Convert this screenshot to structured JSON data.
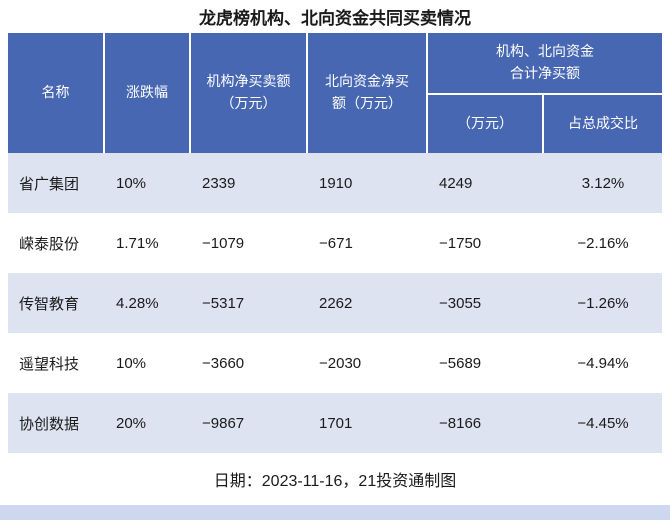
{
  "title": "龙虎榜机构、北向资金共同买卖情况",
  "table": {
    "header": {
      "name": "名称",
      "change": "涨跌幅",
      "inst": "机构净买卖额\n（万元）",
      "north": "北向资金净买\n额（万元）",
      "combined_group": "机构、北向资金\n合计净买额",
      "combined_amount": "（万元）",
      "combined_ratio": "占总成交比"
    },
    "rows": [
      {
        "name": "省广集团",
        "change": "10%",
        "inst": "2339",
        "north": "1910",
        "total": "4249",
        "ratio": "3.12%"
      },
      {
        "name": "嵘泰股份",
        "change": "1.71%",
        "inst": "−1079",
        "north": "−671",
        "total": "−1750",
        "ratio": "−2.16%"
      },
      {
        "name": "传智教育",
        "change": "4.28%",
        "inst": "−5317",
        "north": "2262",
        "total": "−3055",
        "ratio": "−1.26%"
      },
      {
        "name": "遥望科技",
        "change": "10%",
        "inst": "−3660",
        "north": "−2030",
        "total": "−5689",
        "ratio": "−4.94%"
      },
      {
        "name": "协创数据",
        "change": "20%",
        "inst": "−9867",
        "north": "1701",
        "total": "−8166",
        "ratio": "−4.45%"
      }
    ],
    "footer": "日期：2023-11-16，21投资通制图"
  },
  "chart_data": {
    "type": "table",
    "title": "龙虎榜机构、北向资金共同买卖情况",
    "columns": [
      "名称",
      "涨跌幅",
      "机构净买卖额（万元）",
      "北向资金净买额（万元）",
      "机构、北向资金合计净买额（万元）",
      "机构、北向资金合计净买额占总成交比"
    ],
    "rows": [
      [
        "省广集团",
        "10%",
        2339,
        1910,
        4249,
        "3.12%"
      ],
      [
        "嵘泰股份",
        "1.71%",
        -1079,
        -671,
        -1750,
        "-2.16%"
      ],
      [
        "传智教育",
        "4.28%",
        -5317,
        2262,
        -3055,
        "-1.26%"
      ],
      [
        "遥望科技",
        "10%",
        -3660,
        -2030,
        -5689,
        "-4.94%"
      ],
      [
        "协创数据",
        "20%",
        -9867,
        1701,
        -8166,
        "-4.45%"
      ]
    ],
    "note": "日期：2023-11-16，21投资通制图"
  },
  "colors": {
    "header_bg": "#4767b2",
    "row_alt_bg": "#dde3f1",
    "bottom_bar": "#cdd8ee"
  }
}
